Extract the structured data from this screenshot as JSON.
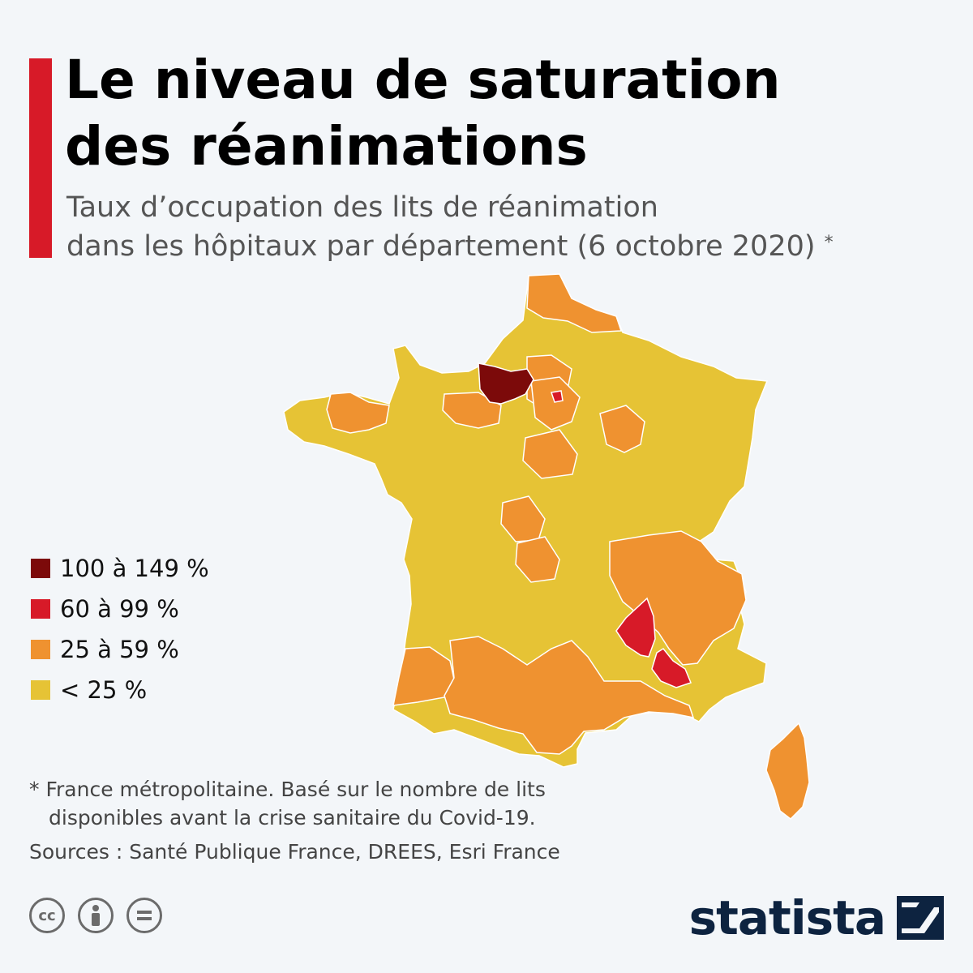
{
  "header": {
    "title_line1": "Le niveau de saturation",
    "title_line2": "des réanimations",
    "subtitle_line1": "Taux d’occupation des lits de réanimation",
    "subtitle_line2": "dans les hôpitaux par département (6 octobre 2020)",
    "subtitle_asterisk": "*"
  },
  "colors": {
    "accent": "#d71a28",
    "background": "#f3f6f9",
    "border": "#ffffff",
    "class_100_149": "#7c0a0a",
    "class_60_99": "#d71a28",
    "class_25_59": "#ef9230",
    "class_lt_25": "#e6c335"
  },
  "legend": [
    {
      "label": "100 à 149 %",
      "color": "#7c0a0a"
    },
    {
      "label": "60 à 99 %",
      "color": "#d71a28"
    },
    {
      "label": "25 à 59 %",
      "color": "#ef9230"
    },
    {
      "label": "< 25 %",
      "color": "#e6c335"
    }
  ],
  "map_data": {
    "type": "choropleth",
    "region": "France métropolitaine",
    "date": "6 octobre 2020",
    "highlighted": [
      {
        "area": "Eure",
        "class": "100 à 149 %"
      },
      {
        "area": "Paris",
        "class": "60 à 99 %"
      },
      {
        "area": "Ardèche",
        "class": "60 à 99 %"
      },
      {
        "area": "Vaucluse",
        "class": "60 à 99 %"
      }
    ]
  },
  "footer": {
    "note_line1": "* France métropolitaine. Basé sur le nombre de lits",
    "note_line2": "disponibles avant la crise sanitaire du Covid-19.",
    "sources": "Sources : Santé Publique France, DREES, Esri France",
    "license_icons": [
      "cc-icon",
      "attribution-icon",
      "no-derivatives-icon"
    ],
    "logo": "statista"
  }
}
